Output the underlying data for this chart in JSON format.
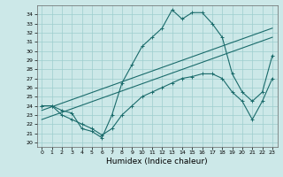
{
  "xlabel": "Humidex (Indice chaleur)",
  "bg_color": "#cce8e8",
  "grid_color": "#9ecece",
  "line_color": "#1a6b6b",
  "xlim": [
    -0.5,
    23.5
  ],
  "ylim": [
    19.5,
    35.0
  ],
  "yticks": [
    20,
    21,
    22,
    23,
    24,
    25,
    26,
    27,
    28,
    29,
    30,
    31,
    32,
    33,
    34
  ],
  "xticks": [
    0,
    1,
    2,
    3,
    4,
    5,
    6,
    7,
    8,
    9,
    10,
    11,
    12,
    13,
    14,
    15,
    16,
    17,
    18,
    19,
    20,
    21,
    22,
    23
  ],
  "line1_x": [
    0,
    1,
    2,
    3,
    4,
    5,
    6,
    7,
    8,
    9,
    10,
    11,
    12,
    13,
    14,
    15,
    16,
    17,
    18,
    19,
    20,
    21,
    22,
    23
  ],
  "line1_y": [
    24.0,
    24.0,
    23.5,
    23.2,
    21.5,
    21.2,
    20.5,
    23.0,
    26.5,
    28.5,
    30.5,
    31.5,
    32.5,
    34.5,
    33.5,
    34.2,
    34.2,
    33.0,
    31.5,
    27.5,
    25.5,
    24.5,
    25.5,
    29.5
  ],
  "line2_x": [
    0,
    23
  ],
  "line2_y": [
    22.5,
    31.5
  ],
  "line3_x": [
    0,
    23
  ],
  "line3_y": [
    23.5,
    32.5
  ],
  "line4_x": [
    0,
    1,
    2,
    3,
    4,
    5,
    6,
    7,
    8,
    9,
    10,
    11,
    12,
    13,
    14,
    15,
    16,
    17,
    18,
    19,
    20,
    21,
    22,
    23
  ],
  "line4_y": [
    24.0,
    24.0,
    23.0,
    22.5,
    22.0,
    21.5,
    20.8,
    21.5,
    23.0,
    24.0,
    25.0,
    25.5,
    26.0,
    26.5,
    27.0,
    27.2,
    27.5,
    27.5,
    27.0,
    25.5,
    24.5,
    22.5,
    24.5,
    27.0
  ],
  "tick_fontsize": 4.5,
  "xlabel_fontsize": 6.5
}
